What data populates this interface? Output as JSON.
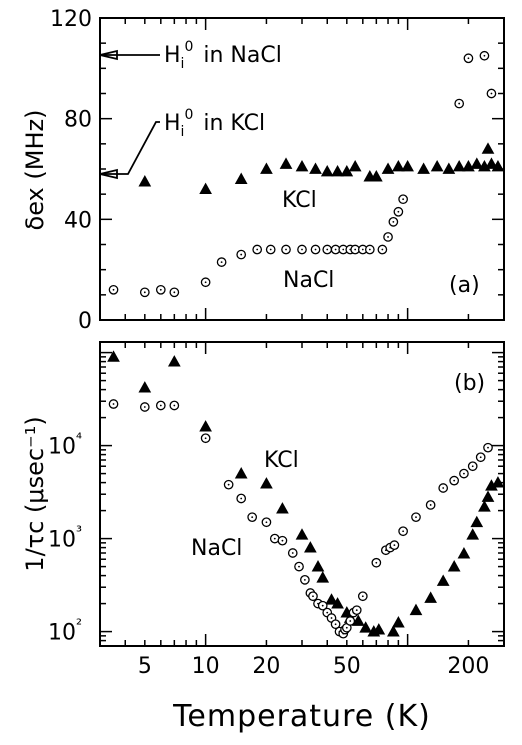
{
  "chart_data": [
    {
      "type": "scatter",
      "panel_label": "(a)",
      "ylabel": "δex (MHz)",
      "ylim": [
        0,
        120
      ],
      "yticks": [
        "0",
        "40",
        "80",
        "120"
      ],
      "x_scale": "log",
      "xlim": [
        3,
        300
      ],
      "annotations": [
        {
          "label": "H",
          "sub": "i",
          "sup": "0",
          "rest": "in NaCl",
          "value": 105
        },
        {
          "label": "H",
          "sub": "i",
          "sup": "0",
          "rest": "in KCl",
          "value": 58
        }
      ],
      "series": [
        {
          "name": "KCl",
          "marker": "filled-triangle",
          "points": [
            [
              5,
              55
            ],
            [
              10,
              52
            ],
            [
              15,
              56
            ],
            [
              20,
              60
            ],
            [
              25,
              62
            ],
            [
              30,
              61
            ],
            [
              35,
              60
            ],
            [
              40,
              59
            ],
            [
              45,
              59
            ],
            [
              50,
              59
            ],
            [
              55,
              61
            ],
            [
              65,
              57
            ],
            [
              70,
              57
            ],
            [
              80,
              60
            ],
            [
              90,
              61
            ],
            [
              100,
              61
            ],
            [
              120,
              60
            ],
            [
              140,
              61
            ],
            [
              160,
              60
            ],
            [
              180,
              61
            ],
            [
              200,
              61
            ],
            [
              220,
              62
            ],
            [
              240,
              61
            ],
            [
              250,
              68
            ],
            [
              260,
              62
            ],
            [
              280,
              61
            ]
          ]
        },
        {
          "name": "NaCl",
          "marker": "open-circle-dot",
          "points": [
            [
              3.5,
              12
            ],
            [
              5,
              11
            ],
            [
              6,
              12
            ],
            [
              7,
              11
            ],
            [
              10,
              15
            ],
            [
              12,
              23
            ],
            [
              15,
              26
            ],
            [
              18,
              28
            ],
            [
              21,
              28
            ],
            [
              25,
              28
            ],
            [
              30,
              28
            ],
            [
              35,
              28
            ],
            [
              40,
              28
            ],
            [
              44,
              28
            ],
            [
              48,
              28
            ],
            [
              52,
              28
            ],
            [
              55,
              28
            ],
            [
              60,
              28
            ],
            [
              65,
              28
            ],
            [
              75,
              28
            ],
            [
              80,
              33
            ],
            [
              85,
              39
            ],
            [
              90,
              43
            ],
            [
              95,
              48
            ],
            [
              180,
              86
            ],
            [
              200,
              104
            ],
            [
              240,
              105
            ],
            [
              260,
              90
            ]
          ]
        }
      ]
    },
    {
      "type": "scatter",
      "panel_label": "(b)",
      "ylabel": "1/τc (μsec⁻¹)",
      "y_scale": "log",
      "ylim": [
        70,
        130000
      ],
      "yticks": [
        "10²",
        "10³",
        "10⁴"
      ],
      "x_scale": "log",
      "xlim": [
        3,
        300
      ],
      "xlabel": "Temperature (K)",
      "xticks": [
        "5",
        "10",
        "20",
        "50",
        "200"
      ],
      "series": [
        {
          "name": "KCl",
          "marker": "filled-triangle",
          "points": [
            [
              3.5,
              90000
            ],
            [
              5,
              42000
            ],
            [
              7,
              80000
            ],
            [
              10,
              16000
            ],
            [
              15,
              5000
            ],
            [
              20,
              3900
            ],
            [
              24,
              2100
            ],
            [
              30,
              1100
            ],
            [
              33,
              800
            ],
            [
              36,
              500
            ],
            [
              38,
              380
            ],
            [
              42,
              220
            ],
            [
              45,
              200
            ],
            [
              50,
              160
            ],
            [
              52,
              140
            ],
            [
              57,
              130
            ],
            [
              62,
              110
            ],
            [
              68,
              100
            ],
            [
              72,
              105
            ],
            [
              85,
              100
            ],
            [
              90,
              125
            ],
            [
              110,
              170
            ],
            [
              130,
              230
            ],
            [
              150,
              350
            ],
            [
              170,
              500
            ],
            [
              190,
              690
            ],
            [
              210,
              1100
            ],
            [
              220,
              1500
            ],
            [
              240,
              2200
            ],
            [
              250,
              2800
            ],
            [
              260,
              3700
            ],
            [
              280,
              4000
            ]
          ]
        },
        {
          "name": "NaCl",
          "marker": "open-circle-dot",
          "points": [
            [
              3.5,
              28000
            ],
            [
              5,
              26000
            ],
            [
              6,
              27000
            ],
            [
              7,
              27000
            ],
            [
              10,
              12000
            ],
            [
              13,
              3800
            ],
            [
              15,
              2700
            ],
            [
              17,
              1700
            ],
            [
              20,
              1500
            ],
            [
              22,
              1000
            ],
            [
              24,
              950
            ],
            [
              27,
              700
            ],
            [
              29,
              500
            ],
            [
              31,
              360
            ],
            [
              33,
              260
            ],
            [
              34,
              240
            ],
            [
              36,
              200
            ],
            [
              38,
              190
            ],
            [
              40,
              160
            ],
            [
              42,
              140
            ],
            [
              44,
              120
            ],
            [
              46,
              100
            ],
            [
              48,
              95
            ],
            [
              49,
              105
            ],
            [
              50,
              110
            ],
            [
              52,
              130
            ],
            [
              54,
              160
            ],
            [
              56,
              170
            ],
            [
              60,
              240
            ],
            [
              70,
              550
            ],
            [
              78,
              750
            ],
            [
              82,
              800
            ],
            [
              86,
              850
            ],
            [
              95,
              1200
            ],
            [
              110,
              1700
            ],
            [
              130,
              2300
            ],
            [
              150,
              3500
            ],
            [
              170,
              4200
            ],
            [
              190,
              5000
            ],
            [
              210,
              6000
            ],
            [
              230,
              7500
            ],
            [
              250,
              9500
            ]
          ]
        }
      ]
    }
  ]
}
